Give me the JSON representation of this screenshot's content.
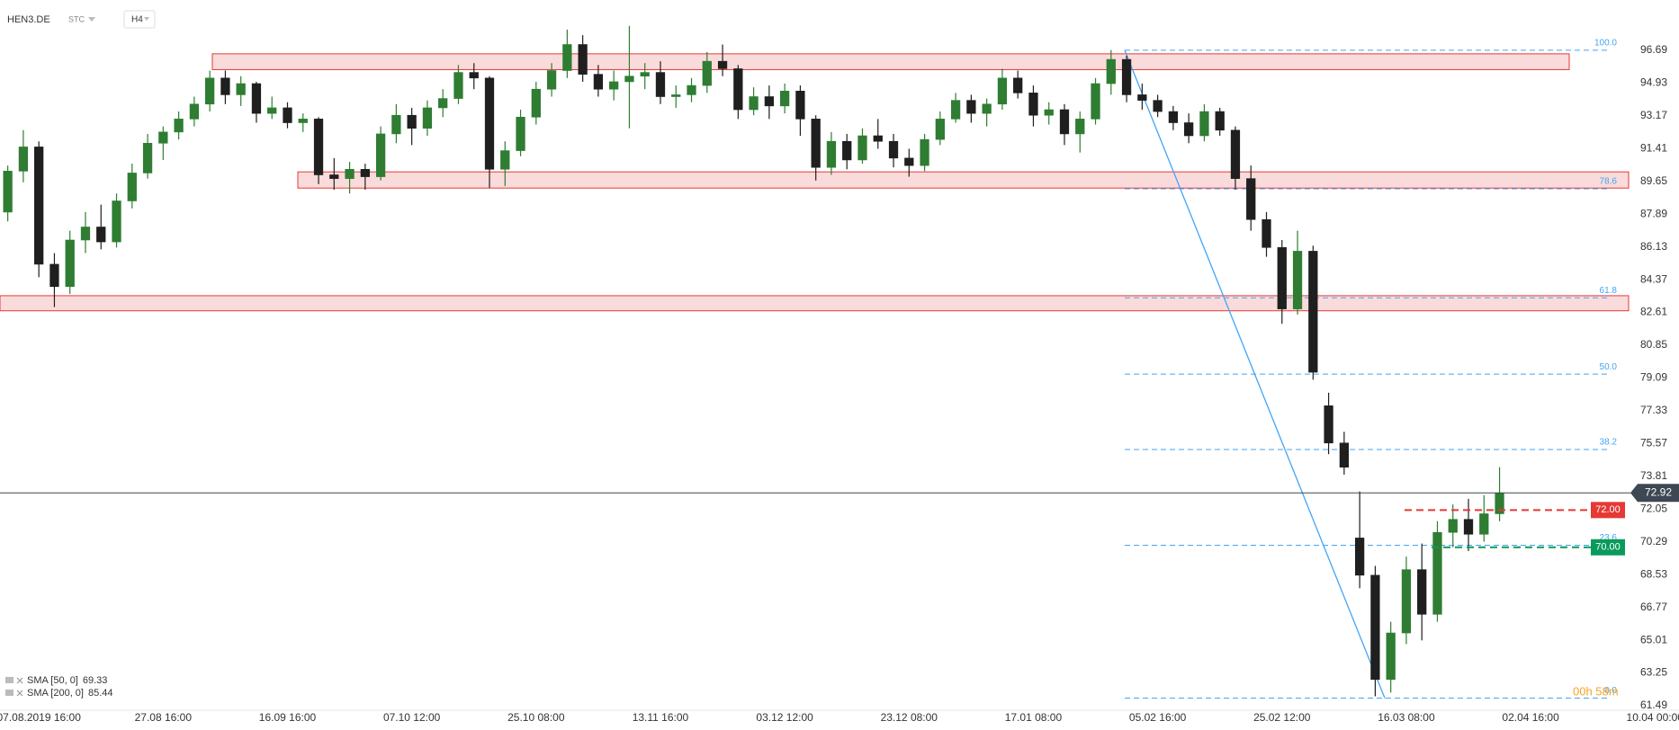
{
  "chart_data": {
    "type": "candlestick",
    "symbol": "HEN3.DE",
    "mode": "STC",
    "interval": "H4",
    "categories": [
      null,
      null,
      "07.08.2019 16:00",
      null,
      null,
      null,
      null,
      null,
      null,
      null,
      "27.08 16:00",
      null,
      null,
      null,
      null,
      null,
      null,
      null,
      "16.09 16:00",
      null,
      null,
      null,
      null,
      null,
      null,
      null,
      "07.10 12:00",
      null,
      null,
      null,
      null,
      null,
      null,
      null,
      "25.10 08:00",
      null,
      null,
      null,
      null,
      null,
      null,
      null,
      "13.11 16:00",
      null,
      null,
      null,
      null,
      null,
      null,
      null,
      "03.12 12:00",
      null,
      null,
      null,
      null,
      null,
      null,
      null,
      "23.12 08:00",
      null,
      null,
      null,
      null,
      null,
      null,
      null,
      "17.01 08:00",
      null,
      null,
      null,
      null,
      null,
      null,
      null,
      "05.02 16:00",
      null,
      null,
      null,
      null,
      null,
      null,
      null,
      "25.02 12:00",
      null,
      null,
      null,
      null,
      null,
      null,
      null,
      "16.03 08:00",
      null,
      null,
      null,
      null,
      null,
      null,
      null,
      "02.04 16:00",
      null,
      null,
      null,
      null,
      null,
      null,
      null,
      "10.04 00:00"
    ],
    "open": [
      88.0,
      90.2,
      91.5,
      85.2,
      84.0,
      86.5,
      87.2,
      86.4,
      88.6,
      90.1,
      91.7,
      92.3,
      93.0,
      93.8,
      95.2,
      94.3,
      94.9,
      93.3,
      93.6,
      92.8,
      93.0,
      90.0,
      89.8,
      90.3,
      89.9,
      92.2,
      93.2,
      92.5,
      93.6,
      94.1,
      95.5,
      95.2,
      90.3,
      91.3,
      93.1,
      94.6,
      95.6,
      97.0,
      95.4,
      94.6,
      95.0,
      95.3,
      95.5,
      94.2,
      94.3,
      94.8,
      96.1,
      95.7,
      93.5,
      94.2,
      93.7,
      94.5,
      93.0,
      90.4,
      91.8,
      90.8,
      92.1,
      91.8,
      90.9,
      90.5,
      91.9,
      93.0,
      94.0,
      93.3,
      93.8,
      95.2,
      94.4,
      93.2,
      93.5,
      92.2,
      93.0,
      94.9,
      96.2,
      94.3,
      94.0,
      93.4,
      92.8,
      92.1,
      93.4,
      92.4,
      89.8,
      87.6,
      86.1,
      82.8,
      85.9,
      77.6,
      75.6,
      70.5,
      68.5,
      62.9,
      65.4,
      68.8,
      66.4,
      70.8,
      71.5,
      70.7,
      71.8,
      null,
      null,
      null,
      null,
      null,
      null,
      null,
      null,
      null,
      null
    ],
    "high": [
      90.5,
      92.4,
      91.8,
      85.8,
      87.0,
      88.0,
      88.4,
      89.0,
      90.6,
      92.2,
      92.6,
      93.4,
      94.2,
      95.6,
      95.6,
      95.3,
      95.0,
      94.2,
      93.9,
      93.3,
      93.1,
      90.9,
      90.7,
      90.6,
      92.6,
      93.8,
      93.6,
      94.0,
      94.6,
      95.9,
      96.0,
      95.3,
      91.8,
      93.5,
      95.0,
      96.0,
      97.8,
      97.5,
      95.9,
      95.6,
      98.0,
      96.0,
      96.1,
      94.8,
      95.2,
      96.6,
      97.0,
      95.9,
      94.7,
      94.8,
      94.9,
      94.8,
      93.2,
      92.3,
      92.2,
      92.5,
      93.0,
      92.2,
      91.4,
      92.2,
      93.4,
      94.4,
      94.3,
      94.1,
      95.7,
      95.6,
      94.8,
      93.9,
      93.8,
      93.4,
      95.2,
      96.7,
      96.4,
      94.9,
      94.3,
      93.7,
      93.3,
      93.8,
      93.6,
      92.6,
      90.5,
      88.0,
      86.5,
      87.0,
      86.2,
      78.3,
      76.2,
      73.0,
      69.0,
      66.0,
      69.5,
      70.2,
      71.4,
      72.3,
      72.6,
      72.8,
      74.3,
      null,
      null,
      null,
      null,
      null,
      null,
      null,
      null,
      null,
      null
    ],
    "low": [
      87.5,
      89.6,
      84.5,
      82.9,
      83.6,
      85.8,
      86.0,
      86.1,
      88.2,
      89.8,
      90.8,
      91.9,
      92.6,
      93.4,
      93.8,
      93.7,
      92.8,
      93.0,
      92.5,
      92.3,
      89.5,
      89.2,
      89.0,
      89.2,
      89.7,
      91.7,
      91.6,
      92.1,
      93.1,
      93.8,
      94.6,
      89.3,
      89.4,
      91.0,
      92.7,
      94.2,
      95.2,
      95.0,
      94.2,
      94.0,
      92.5,
      94.6,
      93.8,
      93.6,
      93.9,
      94.4,
      95.3,
      93.0,
      93.2,
      93.0,
      93.3,
      92.1,
      89.7,
      90.0,
      90.3,
      90.6,
      91.4,
      90.4,
      89.9,
      90.2,
      91.6,
      92.8,
      92.8,
      92.6,
      93.5,
      94.1,
      92.6,
      92.7,
      91.6,
      91.2,
      92.7,
      94.3,
      93.9,
      93.5,
      93.1,
      92.4,
      91.7,
      91.8,
      92.1,
      89.2,
      87.0,
      85.6,
      82.0,
      82.5,
      79.0,
      75.0,
      73.9,
      67.8,
      62.0,
      62.2,
      64.8,
      65.0,
      66.0,
      70.0,
      69.8,
      70.3,
      71.4,
      null,
      null,
      null,
      null,
      null,
      null,
      null,
      null,
      null,
      null
    ],
    "close": [
      90.2,
      91.5,
      85.2,
      84.0,
      86.5,
      87.2,
      86.4,
      88.6,
      90.1,
      91.7,
      92.3,
      93.0,
      93.8,
      95.2,
      94.3,
      94.9,
      93.3,
      93.6,
      92.8,
      93.0,
      90.0,
      89.8,
      90.3,
      89.9,
      92.2,
      93.2,
      92.5,
      93.6,
      94.1,
      95.5,
      95.2,
      90.3,
      91.3,
      93.1,
      94.6,
      95.6,
      97.0,
      95.4,
      94.6,
      95.0,
      95.3,
      95.5,
      94.2,
      94.3,
      94.8,
      96.1,
      95.7,
      93.5,
      94.2,
      93.7,
      94.5,
      93.0,
      90.4,
      91.8,
      90.8,
      92.1,
      91.8,
      90.9,
      90.5,
      91.9,
      93.0,
      94.0,
      93.3,
      93.8,
      95.2,
      94.4,
      93.2,
      93.5,
      92.2,
      93.0,
      94.9,
      96.2,
      94.3,
      94.0,
      93.4,
      92.8,
      92.1,
      93.4,
      92.4,
      89.8,
      87.6,
      86.1,
      82.8,
      85.9,
      79.4,
      75.6,
      74.3,
      68.5,
      62.9,
      65.4,
      68.8,
      66.4,
      70.8,
      71.5,
      70.7,
      71.8,
      72.92,
      null,
      null,
      null,
      null,
      null,
      null,
      null,
      null,
      null,
      null
    ],
    "up_color": "#2e7d32",
    "down_color": "#1f1f1f",
    "ylim": [
      61.25,
      99.39
    ],
    "yticks": [
      96.69,
      94.93,
      93.17,
      91.41,
      89.65,
      87.89,
      86.13,
      84.37,
      82.61,
      80.85,
      79.09,
      77.33,
      75.57,
      73.81,
      72.05,
      70.29,
      68.53,
      66.77,
      65.01,
      63.25,
      61.49
    ],
    "grid": false,
    "zones": [
      {
        "high": 96.5,
        "low": 95.65
      },
      {
        "high": 90.16,
        "low": 89.29
      },
      {
        "high": 83.51,
        "low": 82.7
      }
    ],
    "zone_color": "#e53935",
    "fib": {
      "color": "#42a5f5",
      "levels": [
        {
          "label": "100.0",
          "price": 96.69
        },
        {
          "label": "78.6",
          "price": 89.25
        },
        {
          "label": "61.8",
          "price": 83.4
        },
        {
          "label": "50.0",
          "price": 79.3
        },
        {
          "label": "38.2",
          "price": 75.25
        },
        {
          "label": "23.6",
          "price": 70.11
        },
        {
          "label": "0.0",
          "price": 61.9
        }
      ]
    },
    "price_lines": [
      {
        "value": 72,
        "label": "72.00",
        "color": "#e53935"
      },
      {
        "value": 70,
        "label": "70.00",
        "color": "#0a9a5c"
      }
    ],
    "last_price": 72.92,
    "indicators": [
      {
        "name": "SMA [50, 0]",
        "value": 69.33
      },
      {
        "name": "SMA [200, 0]",
        "value": 85.44
      }
    ],
    "countdown": "00h 58m"
  }
}
